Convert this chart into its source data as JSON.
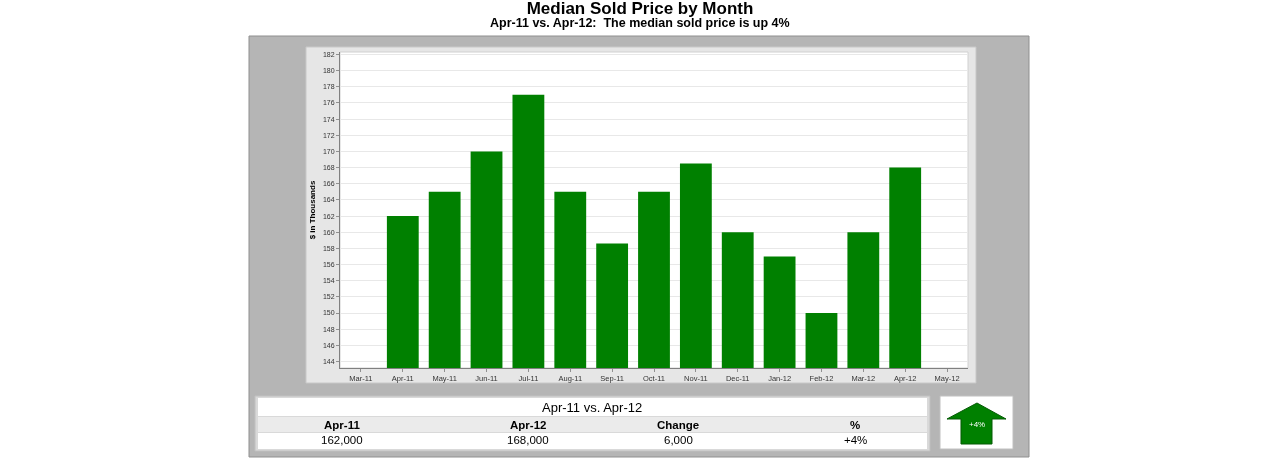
{
  "chart_data": {
    "type": "bar",
    "title": "Median Sold Price by Month",
    "subtitle": "Apr-11 vs. Apr-12:  The median sold price is up 4%",
    "ylabel": "$ in Thousands",
    "categories": [
      "Mar-11",
      "Apr-11",
      "May-11",
      "Jun-11",
      "Jul-11",
      "Aug-11",
      "Sep-11",
      "Oct-11",
      "Nov-11",
      "Dec-11",
      "Jan-12",
      "Feb-12",
      "Mar-12",
      "Apr-12",
      "May-12"
    ],
    "values": [
      null,
      162,
      165,
      170,
      177,
      165,
      158.6,
      165,
      168.5,
      160,
      157,
      150,
      160,
      168,
      null
    ],
    "color": "#008000",
    "ylim": [
      143.2,
      182.3
    ],
    "yticks": [
      144,
      146,
      148,
      150,
      152,
      154,
      156,
      158,
      160,
      162,
      164,
      166,
      168,
      170,
      172,
      174,
      176,
      178,
      180,
      182
    ],
    "grid": "y",
    "annotations": [
      "Apr-11 vs. Apr-12",
      "Apr-11",
      "Apr-12",
      "Change",
      "%",
      "162,000",
      "168,000",
      "6,000",
      "+4%",
      "+4%"
    ]
  }
}
